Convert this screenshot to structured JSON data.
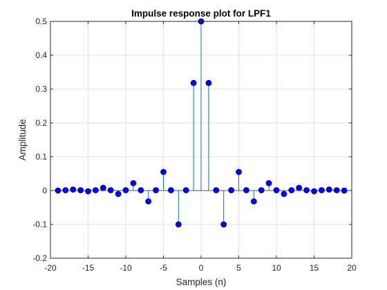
{
  "chart_data": {
    "type": "stem",
    "title": "Impulse response plot for LPF1",
    "xlabel": "Samples (n)",
    "ylabel": "Amplitude",
    "xlim": [
      -20,
      20
    ],
    "ylim": [
      -0.2,
      0.5
    ],
    "grid": true,
    "x_ticks": [
      -20,
      -15,
      -10,
      -5,
      0,
      5,
      10,
      15,
      20
    ],
    "y_ticks": [
      -0.2,
      -0.1,
      0,
      0.1,
      0.2,
      0.3,
      0.4,
      0.5
    ],
    "x_tick_labels": [
      "-20",
      "-15",
      "-10",
      "-5",
      "0",
      "5",
      "10",
      "15",
      "20"
    ],
    "y_tick_labels": [
      "-0.2",
      "-0.1",
      "0",
      "0.1",
      "0.2",
      "0.3",
      "0.4",
      "0.5"
    ],
    "colors": {
      "stem": "#0072BD",
      "marker_fill": "#0000FF",
      "marker_edge": "#000080",
      "grid": "#DFDFDF",
      "axis": "#262626",
      "background": "#FFFFFF"
    },
    "x": [
      -19,
      -18,
      -17,
      -16,
      -15,
      -14,
      -13,
      -12,
      -11,
      -10,
      -9,
      -8,
      -7,
      -6,
      -5,
      -4,
      -3,
      -2,
      -1,
      0,
      1,
      2,
      3,
      4,
      5,
      6,
      7,
      8,
      9,
      10,
      11,
      12,
      13,
      14,
      15,
      16,
      17,
      18,
      19
    ],
    "values": [
      0,
      0.001,
      0.003,
      0.001,
      -0.002,
      0.001,
      0.008,
      0.001,
      -0.01,
      0.001,
      0.022,
      0.001,
      -0.032,
      0.001,
      0.055,
      0.001,
      -0.1,
      0.001,
      0.318,
      0.5,
      0.318,
      0.001,
      -0.1,
      0.001,
      0.055,
      0.001,
      -0.032,
      0.001,
      0.022,
      0.001,
      -0.01,
      0.001,
      0.008,
      0.001,
      -0.002,
      0.001,
      0.003,
      0.001,
      0
    ]
  }
}
